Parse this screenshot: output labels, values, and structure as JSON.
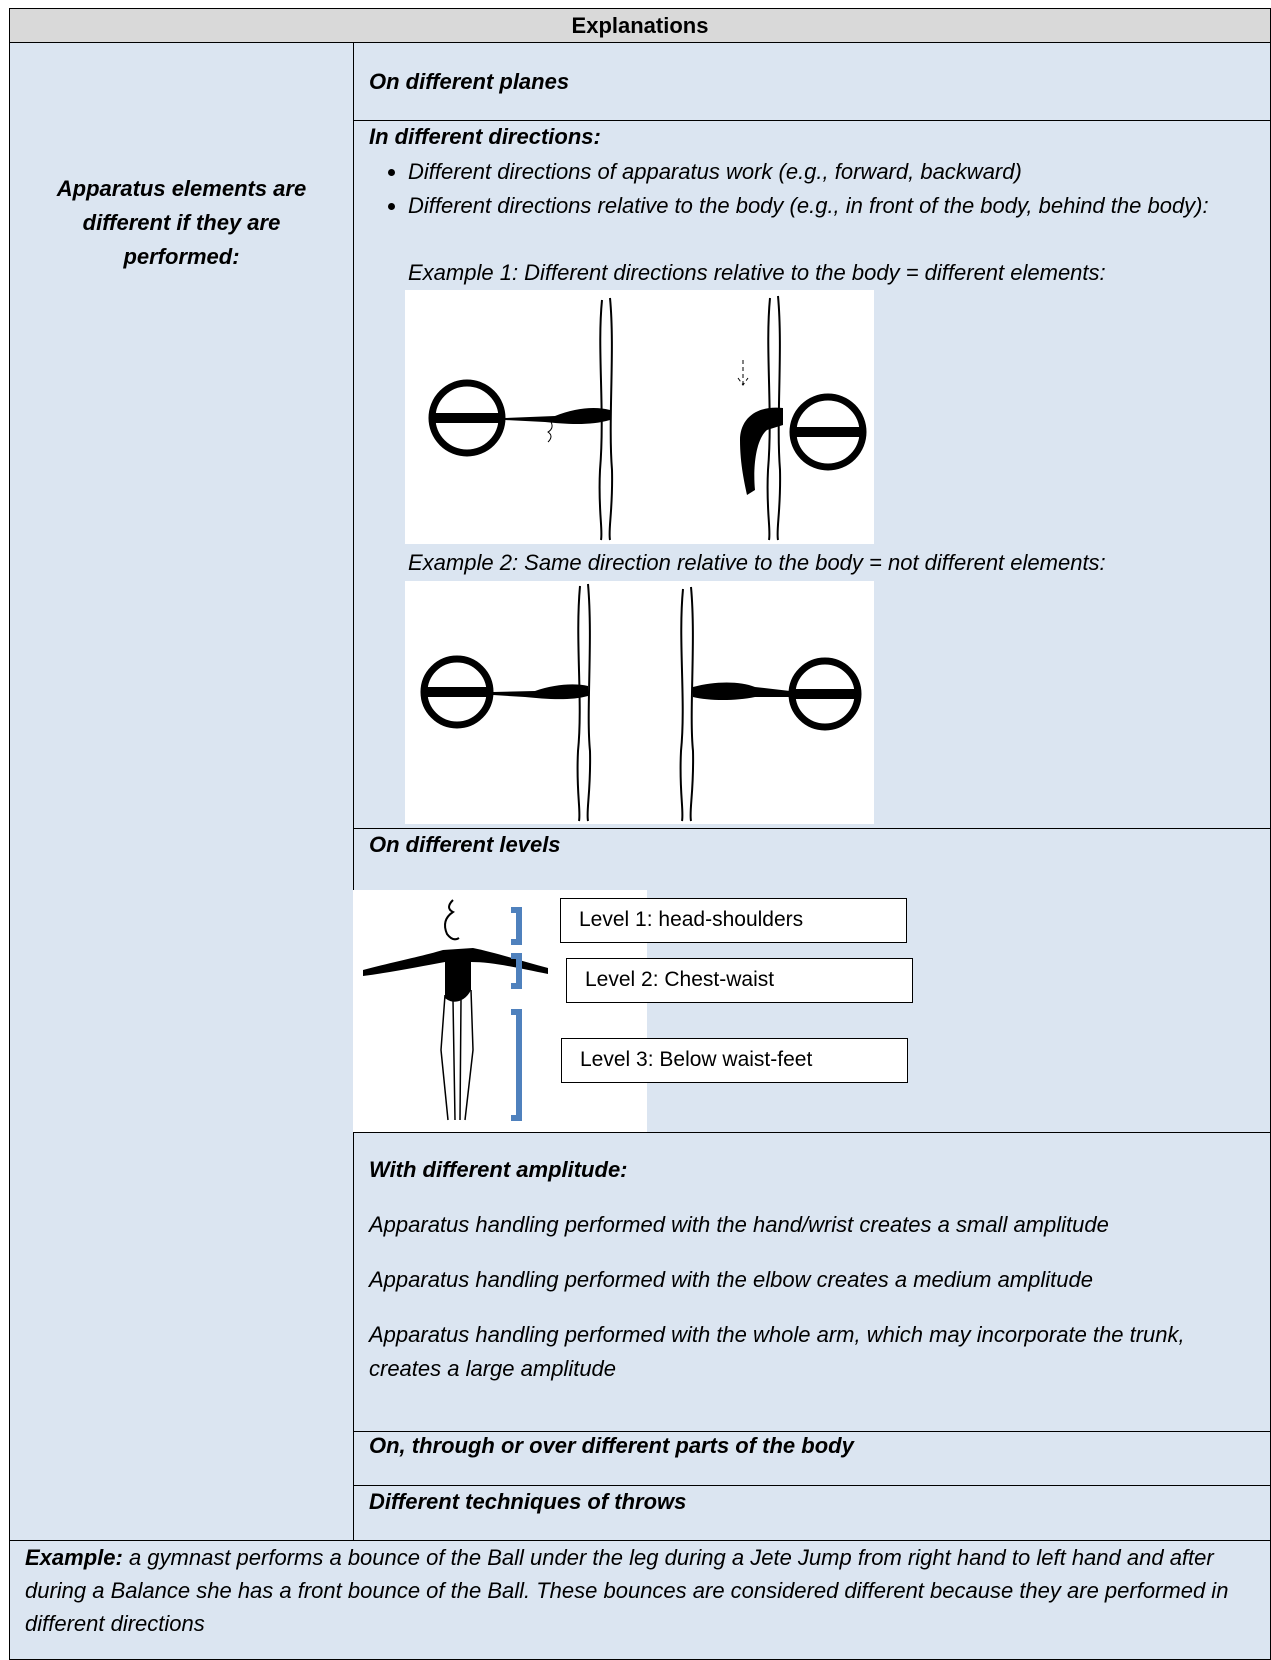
{
  "table": {
    "header": "Explanations",
    "left_cell": "Apparatus elements are different if they are performed:",
    "rows": [
      {
        "title": "On different planes"
      },
      {
        "title": "In different directions:",
        "bullets": [
          "Different directions of apparatus work (e.g., forward, backward)",
          "Different directions relative to the body (e.g., in front of the body, behind the body):"
        ],
        "examples": [
          "Example 1: Different directions relative to the body = different elements:",
          "Example 2: Same direction relative to the body = not different elements:"
        ]
      },
      {
        "title": "On different levels",
        "levels": [
          "Level 1: head-shoulders",
          "Level 2: Chest-waist",
          "Level 3: Below waist-feet"
        ]
      },
      {
        "title": "With different amplitude:",
        "paragraphs": [
          "Apparatus handling performed with the hand/wrist creates a small amplitude",
          "Apparatus handling performed with the elbow creates a medium amplitude",
          "Apparatus handling performed with the whole arm, which may incorporate the trunk, creates a large amplitude"
        ]
      },
      {
        "title": "On, through or over different parts of the body"
      },
      {
        "title": "Different techniques of throws"
      }
    ]
  },
  "footer": {
    "label": "Example:",
    "text": "a gymnast performs a bounce of the Ball under the leg during a Jete Jump from right hand to left hand and after during a Balance she has a front bounce of the Ball. These bounces are considered different because they are performed in different directions"
  }
}
